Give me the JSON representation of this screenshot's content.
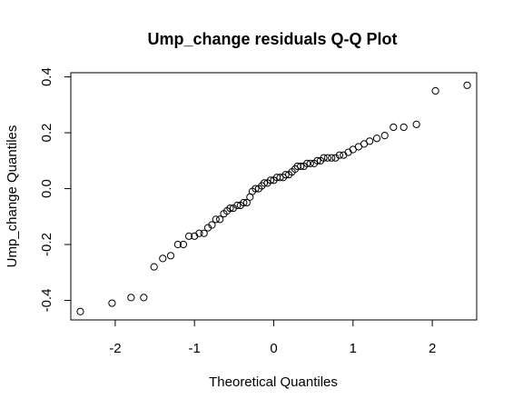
{
  "chart_data": {
    "type": "scatter",
    "title": "Ump_change residuals Q-Q Plot",
    "xlabel": "Theoretical Quantiles",
    "ylabel": "Ump_change Quantiles",
    "xlim": [
      -2.56,
      2.56
    ],
    "ylim": [
      -0.47,
      0.415
    ],
    "x_ticks": [
      {
        "v": -2,
        "label": "-2"
      },
      {
        "v": -1,
        "label": "-1"
      },
      {
        "v": 0,
        "label": "0"
      },
      {
        "v": 1,
        "label": "1"
      },
      {
        "v": 2,
        "label": "2"
      }
    ],
    "y_ticks": [
      {
        "v": -0.4,
        "label": "-0.4"
      },
      {
        "v": -0.2,
        "label": "-0.2"
      },
      {
        "v": 0.0,
        "label": "0.0"
      },
      {
        "v": 0.2,
        "label": "0.2"
      },
      {
        "v": 0.4,
        "label": "0.4"
      }
    ],
    "grid": false,
    "points": [
      [
        -2.44,
        -0.44
      ],
      [
        -2.04,
        -0.41
      ],
      [
        -1.8,
        -0.39
      ],
      [
        -1.64,
        -0.39
      ],
      [
        -1.51,
        -0.28
      ],
      [
        -1.4,
        -0.25
      ],
      [
        -1.3,
        -0.24
      ],
      [
        -1.21,
        -0.2
      ],
      [
        -1.14,
        -0.2
      ],
      [
        -1.07,
        -0.17
      ],
      [
        -1.0,
        -0.17
      ],
      [
        -0.94,
        -0.16
      ],
      [
        -0.88,
        -0.16
      ],
      [
        -0.83,
        -0.14
      ],
      [
        -0.78,
        -0.13
      ],
      [
        -0.73,
        -0.11
      ],
      [
        -0.68,
        -0.11
      ],
      [
        -0.63,
        -0.09
      ],
      [
        -0.59,
        -0.08
      ],
      [
        -0.55,
        -0.07
      ],
      [
        -0.51,
        -0.07
      ],
      [
        -0.46,
        -0.06
      ],
      [
        -0.42,
        -0.06
      ],
      [
        -0.38,
        -0.05
      ],
      [
        -0.34,
        -0.05
      ],
      [
        -0.3,
        -0.03
      ],
      [
        -0.27,
        -0.01
      ],
      [
        -0.23,
        0.0
      ],
      [
        -0.19,
        0.0
      ],
      [
        -0.15,
        0.01
      ],
      [
        -0.12,
        0.02
      ],
      [
        -0.08,
        0.02
      ],
      [
        -0.04,
        0.03
      ],
      [
        0.0,
        0.03
      ],
      [
        0.04,
        0.04
      ],
      [
        0.08,
        0.04
      ],
      [
        0.12,
        0.04
      ],
      [
        0.15,
        0.05
      ],
      [
        0.19,
        0.05
      ],
      [
        0.23,
        0.06
      ],
      [
        0.27,
        0.07
      ],
      [
        0.3,
        0.08
      ],
      [
        0.34,
        0.08
      ],
      [
        0.38,
        0.08
      ],
      [
        0.42,
        0.09
      ],
      [
        0.46,
        0.09
      ],
      [
        0.51,
        0.09
      ],
      [
        0.55,
        0.1
      ],
      [
        0.59,
        0.1
      ],
      [
        0.63,
        0.11
      ],
      [
        0.68,
        0.11
      ],
      [
        0.73,
        0.11
      ],
      [
        0.78,
        0.11
      ],
      [
        0.83,
        0.12
      ],
      [
        0.88,
        0.12
      ],
      [
        0.94,
        0.13
      ],
      [
        1.0,
        0.14
      ],
      [
        1.07,
        0.15
      ],
      [
        1.14,
        0.16
      ],
      [
        1.21,
        0.17
      ],
      [
        1.3,
        0.18
      ],
      [
        1.4,
        0.19
      ],
      [
        1.51,
        0.22
      ],
      [
        1.64,
        0.22
      ],
      [
        1.8,
        0.23
      ],
      [
        2.04,
        0.35
      ],
      [
        2.44,
        0.37
      ]
    ]
  }
}
